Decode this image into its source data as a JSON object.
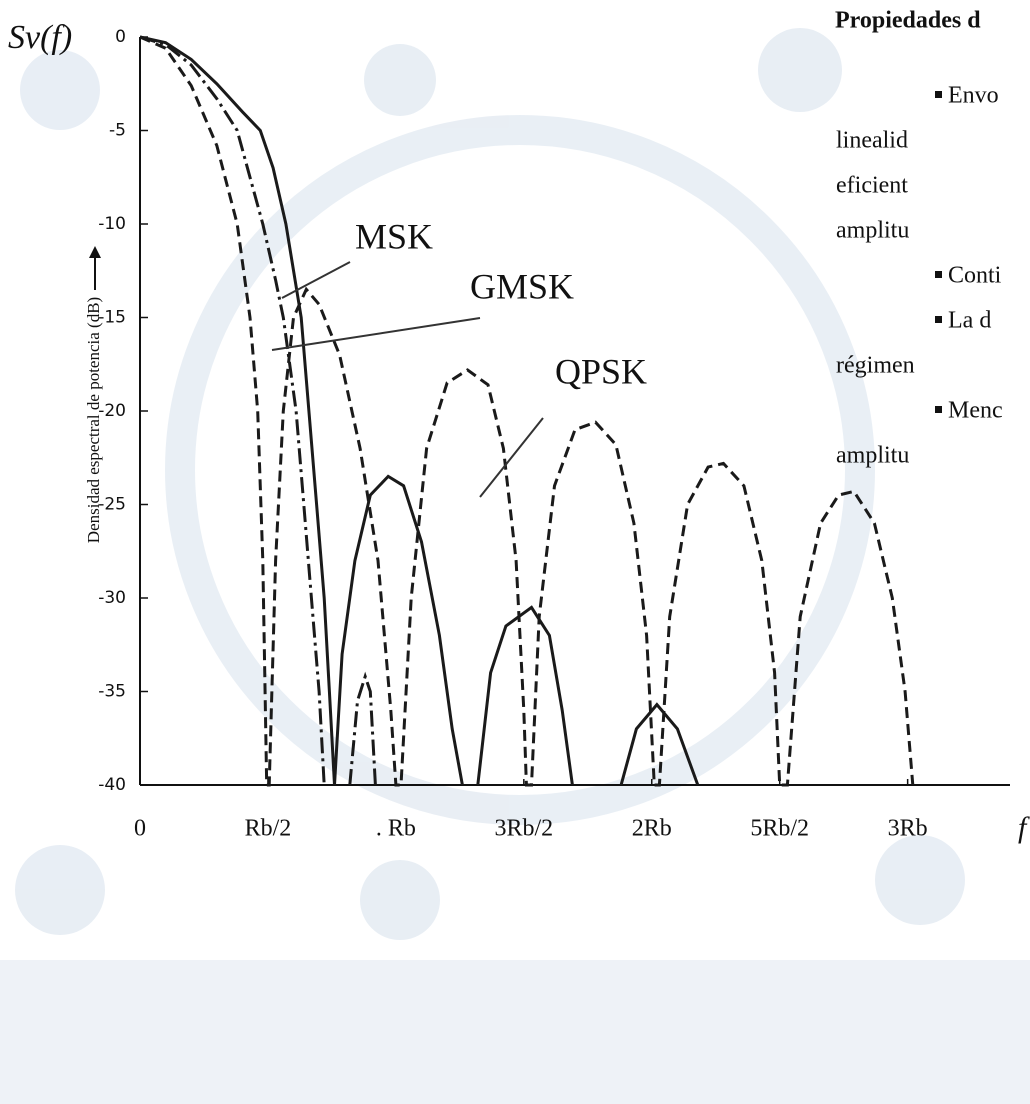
{
  "chart_data": {
    "type": "line",
    "y_symbol": "Sv(f)",
    "y_label": "Densidad espectral de potencia (dB)",
    "x_label": "f",
    "xlim": [
      0,
      3.4
    ],
    "xticks": [
      0,
      {
        "value": 0.5,
        "label": "Rb/2"
      },
      {
        "value": 1,
        "label": ". Rb"
      },
      {
        "value": 1.5,
        "label": "3Rb/2"
      },
      {
        "value": 2,
        "label": "2Rb"
      },
      {
        "value": 2.5,
        "label": "5Rb/2"
      },
      {
        "value": 3,
        "label": "3Rb"
      }
    ],
    "ylim": [
      -40,
      0
    ],
    "yticks": [
      0,
      -5,
      -10,
      -15,
      -20,
      -25,
      -30,
      -35,
      -40
    ],
    "grid": false,
    "series": [
      {
        "name": "MSK",
        "color": "#1a1a1a",
        "style": "solid",
        "x": [
          0,
          0.1,
          0.2,
          0.3,
          0.4,
          0.47,
          0.52,
          0.57,
          0.63,
          0.66,
          0.69,
          0.72,
          0.74,
          0.76,
          0.79,
          0.84,
          0.9,
          0.97,
          1.03,
          1.1,
          1.17,
          1.22,
          1.26,
          null,
          1.32,
          1.37,
          1.43,
          1.53,
          1.6,
          1.65,
          1.69,
          null,
          1.88,
          1.94,
          2.02,
          2.1,
          2.18
        ],
        "values": [
          0,
          -0.3,
          -1.2,
          -2.5,
          -4,
          -5,
          -7,
          -10,
          -15,
          -20,
          -25,
          -30,
          -35,
          -40,
          -33,
          -28,
          -24.5,
          -23.5,
          -24,
          -27,
          -32,
          -37,
          -40,
          null,
          -40,
          -34,
          -31.5,
          -30.5,
          -32,
          -36,
          -40,
          null,
          -40,
          -37,
          -35.7,
          -37,
          -40
        ]
      },
      {
        "name": "GMSK",
        "color": "#1a1a1a",
        "style": "dashdot",
        "x": [
          0,
          0.1,
          0.2,
          0.3,
          0.38,
          0.43,
          0.48,
          0.53,
          0.56,
          0.61,
          0.64,
          0.67,
          0.7,
          0.72,
          null,
          0.82,
          0.85,
          0.88,
          0.9,
          0.92
        ],
        "values": [
          0,
          -0.4,
          -1.5,
          -3.3,
          -5,
          -7.5,
          -10,
          -13,
          -15,
          -20,
          -25,
          -30,
          -35,
          -40,
          null,
          -40,
          -35.5,
          -34.2,
          -35,
          -40
        ]
      },
      {
        "name": "QPSK",
        "color": "#1a1a1a",
        "style": "dashed",
        "x": [
          0,
          0.1,
          0.2,
          0.3,
          0.38,
          0.43,
          0.46,
          0.48,
          0.495,
          0.505,
          0.53,
          0.56,
          0.6,
          0.65,
          0.7,
          0.78,
          0.86,
          0.93,
          0.98,
          1.0,
          1.02,
          1.06,
          1.12,
          1.2,
          1.28,
          1.36,
          1.42,
          1.47,
          1.5,
          1.51,
          1.53,
          1.56,
          1.62,
          1.7,
          1.78,
          1.86,
          1.93,
          1.98,
          2.01,
          2.03,
          2.07,
          2.14,
          2.22,
          2.28,
          2.36,
          2.43,
          2.48,
          2.5,
          2.53,
          2.58,
          2.66,
          2.73,
          2.79,
          2.87,
          2.94,
          2.99,
          3.02
        ],
        "values": [
          0,
          -0.6,
          -2.6,
          -5.8,
          -10,
          -15,
          -20,
          -28,
          -40,
          -40,
          -28,
          -20,
          -15,
          -13.5,
          -14.3,
          -17,
          -22,
          -28,
          -36,
          -40,
          -40,
          -30,
          -22,
          -18.5,
          -17.8,
          -18.6,
          -22,
          -28,
          -36,
          -40,
          -40,
          -31,
          -24,
          -21,
          -20.6,
          -21.8,
          -26,
          -32,
          -40,
          -40,
          -31,
          -25,
          -23,
          -22.8,
          -24,
          -28,
          -34,
          -40,
          -40,
          -31,
          -26,
          -24.5,
          -24.3,
          -26,
          -30,
          -35,
          -40
        ]
      }
    ]
  },
  "side_panel": {
    "heading": "Propiedades d",
    "lines": [
      "Envo",
      "linealid",
      "eficient",
      "amplitu",
      "Conti",
      "La d",
      "régimen",
      "Menc",
      "amplitu"
    ]
  }
}
